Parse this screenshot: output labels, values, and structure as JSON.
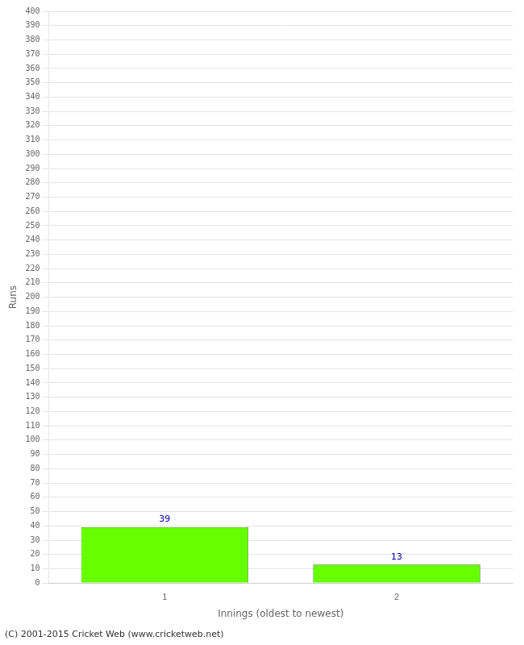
{
  "chart_data": {
    "type": "bar",
    "categories": [
      "1",
      "2"
    ],
    "values": [
      39,
      13
    ],
    "color": "#66ff00",
    "xlabel": "Innings (oldest to newest)",
    "ylabel": "Runs",
    "ylim": [
      0,
      400
    ],
    "yticks": [
      0,
      10,
      20,
      30,
      40,
      50,
      60,
      70,
      80,
      90,
      100,
      110,
      120,
      130,
      140,
      150,
      160,
      170,
      180,
      190,
      200,
      210,
      220,
      230,
      240,
      250,
      260,
      270,
      280,
      290,
      300,
      310,
      320,
      330,
      340,
      350,
      360,
      370,
      380,
      390,
      400
    ],
    "grid": "y",
    "data_labels": true,
    "annotations": [
      "(C) 2001-2015 Cricket Web (www.cricketweb.net)"
    ]
  }
}
